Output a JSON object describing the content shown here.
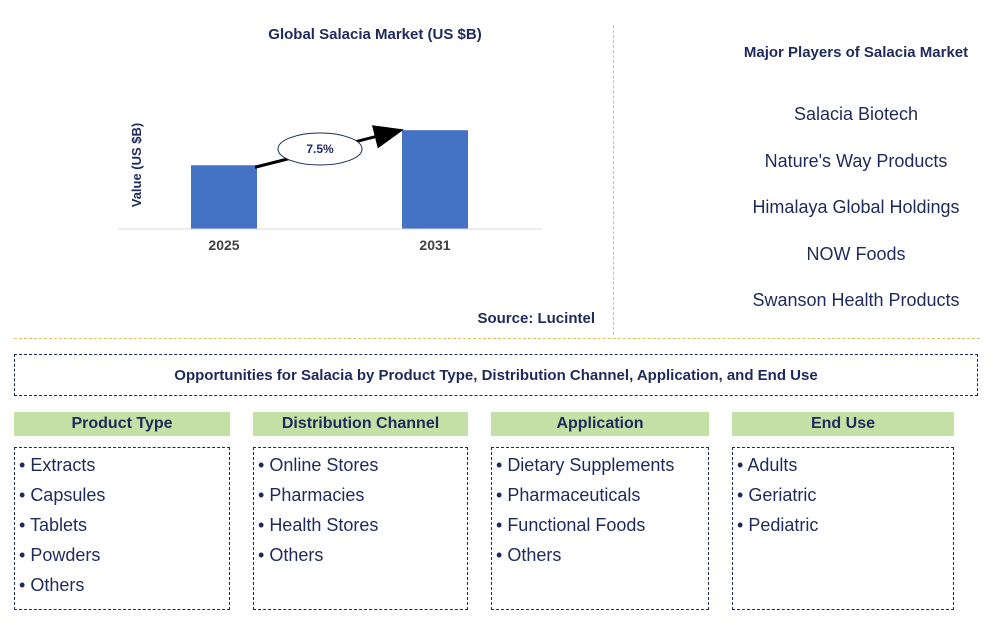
{
  "chart_data": {
    "type": "bar",
    "title": "Global Salacia Market (US $B)",
    "ylabel": "Value (US $B)",
    "xlabel": "",
    "categories": [
      "2025",
      "2031"
    ],
    "values": [
      1.0,
      1.55
    ],
    "ylim": [
      0,
      1.6
    ],
    "bar_color": "#4472c4",
    "growth_label": "7.5%",
    "grid": false,
    "legend": "none"
  },
  "source": "Source: Lucintel",
  "players": {
    "title": "Major Players of Salacia Market",
    "items": [
      "Salacia Biotech",
      "Nature's Way Products",
      "Himalaya Global Holdings",
      "NOW Foods",
      "Swanson Health Products"
    ]
  },
  "opportunities": {
    "title": "Opportunities for Salacia by Product Type, Distribution Channel, Application, and End Use",
    "categories": [
      {
        "title": "Product Type",
        "items": [
          "Extracts",
          "Capsules",
          "Tablets",
          "Powders",
          "Others"
        ]
      },
      {
        "title": "Distribution Channel",
        "items": [
          "Online Stores",
          "Pharmacies",
          "Health Stores",
          "Others"
        ]
      },
      {
        "title": "Application",
        "items": [
          "Dietary Supplements",
          "Pharmaceuticals",
          "Functional Foods",
          "Others"
        ]
      },
      {
        "title": "End Use",
        "items": [
          "Adults",
          "Geriatric",
          "Pediatric"
        ]
      }
    ]
  },
  "colors": {
    "text": "#1f2a5c",
    "header_fill": "#c5e0a5",
    "separator": "#e2c15a"
  }
}
